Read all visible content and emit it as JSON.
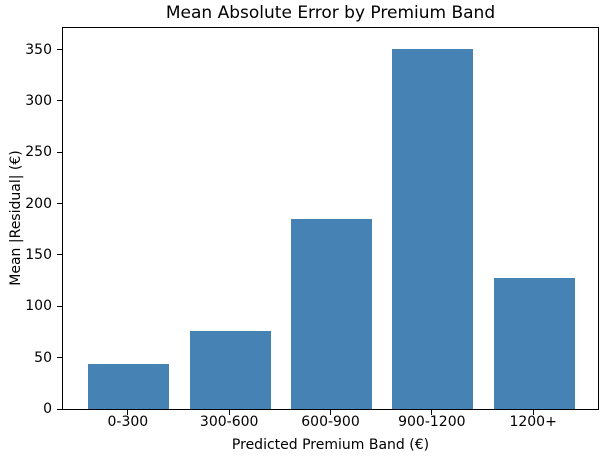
{
  "chart_data": {
    "type": "bar",
    "title": "Mean Absolute Error by Premium Band",
    "xlabel": "Predicted Premium Band (€)",
    "ylabel": "Mean |Residual| (€)",
    "categories": [
      "0-300",
      "300-600",
      "600-900",
      "900-1200",
      "1200+"
    ],
    "values": [
      44,
      76,
      185,
      351,
      128
    ],
    "yticks": [
      0,
      50,
      100,
      150,
      200,
      250,
      300,
      350
    ],
    "ylim": [
      0,
      371
    ],
    "grid": false,
    "bar_color": "#4682b4",
    "background_color": "#ffffff",
    "text_color": "#000000"
  }
}
